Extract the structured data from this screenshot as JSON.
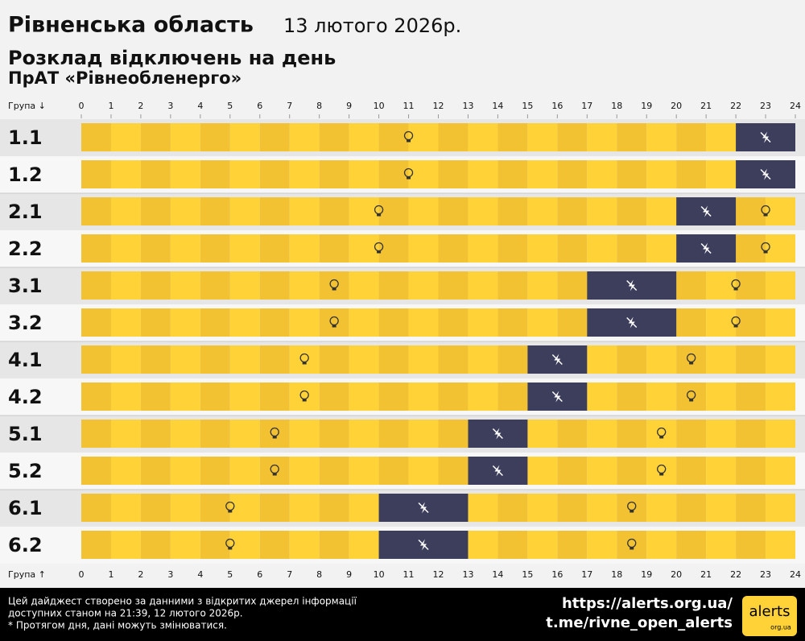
{
  "header": {
    "region": "Рівненська область",
    "date": "13 лютого 2026р.",
    "subtitle": "Розклад відключень на день",
    "company": "ПрАТ «Рівнеобленерго»"
  },
  "chart_data": {
    "type": "timeline",
    "axis_label_top": "Група ↓",
    "axis_label_bottom": "Група ↑",
    "xlim": [
      0,
      24
    ],
    "xticks": [
      0,
      1,
      2,
      3,
      4,
      5,
      6,
      7,
      8,
      9,
      10,
      11,
      12,
      13,
      14,
      15,
      16,
      17,
      18,
      19,
      20,
      21,
      22,
      23,
      24
    ],
    "on_color": "#ffd338",
    "on_color_alt": "#f2c232",
    "off_color": "#3c3e5c",
    "groups": [
      {
        "name": "1.1",
        "off": [
          [
            22,
            24
          ]
        ]
      },
      {
        "name": "1.2",
        "off": [
          [
            22,
            24
          ]
        ]
      },
      {
        "name": "2.1",
        "off": [
          [
            20,
            22
          ]
        ]
      },
      {
        "name": "2.2",
        "off": [
          [
            20,
            22
          ]
        ]
      },
      {
        "name": "3.1",
        "off": [
          [
            17,
            20
          ]
        ]
      },
      {
        "name": "3.2",
        "off": [
          [
            17,
            20
          ]
        ]
      },
      {
        "name": "4.1",
        "off": [
          [
            15,
            17
          ]
        ]
      },
      {
        "name": "4.2",
        "off": [
          [
            15,
            17
          ]
        ]
      },
      {
        "name": "5.1",
        "off": [
          [
            13,
            15
          ]
        ]
      },
      {
        "name": "5.2",
        "off": [
          [
            13,
            15
          ]
        ]
      },
      {
        "name": "6.1",
        "off": [
          [
            10,
            13
          ]
        ]
      },
      {
        "name": "6.2",
        "off": [
          [
            10,
            13
          ]
        ]
      }
    ]
  },
  "footer": {
    "note_lines": [
      "Цей дайджест створено за данними з відкритих джерел інформації",
      "доступних станом на 21:39, 12 лютого 2026р.",
      "* Протягом дня, дані можуть змінюватися."
    ],
    "links": [
      "https://alerts.org.ua/",
      "t.me/rivne_open_alerts"
    ],
    "logo": "alerts",
    "logo_sub": "org.ua"
  }
}
